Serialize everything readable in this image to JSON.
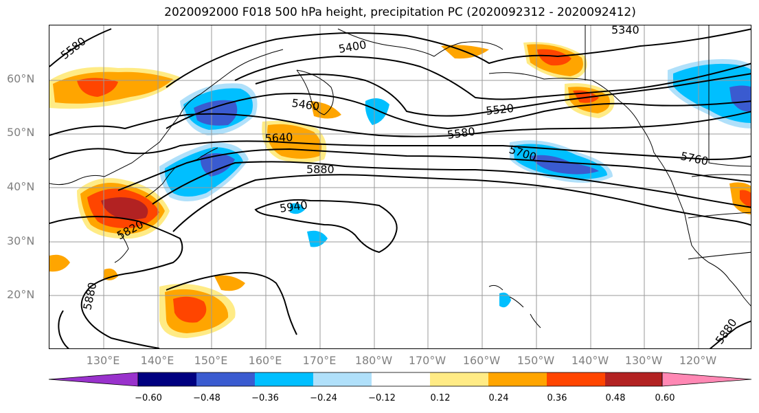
{
  "title": "2020092000 F018 500 hPa height, precipitation PC (2020092312 - 2020092412)",
  "map": {
    "lat_labels": [
      "60°N",
      "50°N",
      "40°N",
      "30°N",
      "20°N"
    ],
    "lon_labels": [
      "130°E",
      "140°E",
      "150°E",
      "160°E",
      "170°E",
      "180°W",
      "170°W",
      "160°W",
      "150°W",
      "140°W",
      "130°W",
      "120°W"
    ],
    "contour_labels": [
      "5580",
      "5400",
      "5340",
      "5460",
      "5520",
      "5580",
      "5640",
      "5700",
      "5760",
      "5880",
      "5940",
      "5820",
      "5880",
      "5880"
    ]
  },
  "colorbar": {
    "colors": [
      "#9932cc",
      "#000080",
      "#3a5bd0",
      "#00bfff",
      "#b0e0fa",
      "#ffffff",
      "#ffeb85",
      "#ffa500",
      "#ff4500",
      "#b22222",
      "#ff88b4"
    ],
    "ticks": [
      "−0.60",
      "−0.48",
      "−0.36",
      "−0.24",
      "−0.12",
      "0.12",
      "0.24",
      "0.36",
      "0.48",
      "0.60"
    ]
  }
}
